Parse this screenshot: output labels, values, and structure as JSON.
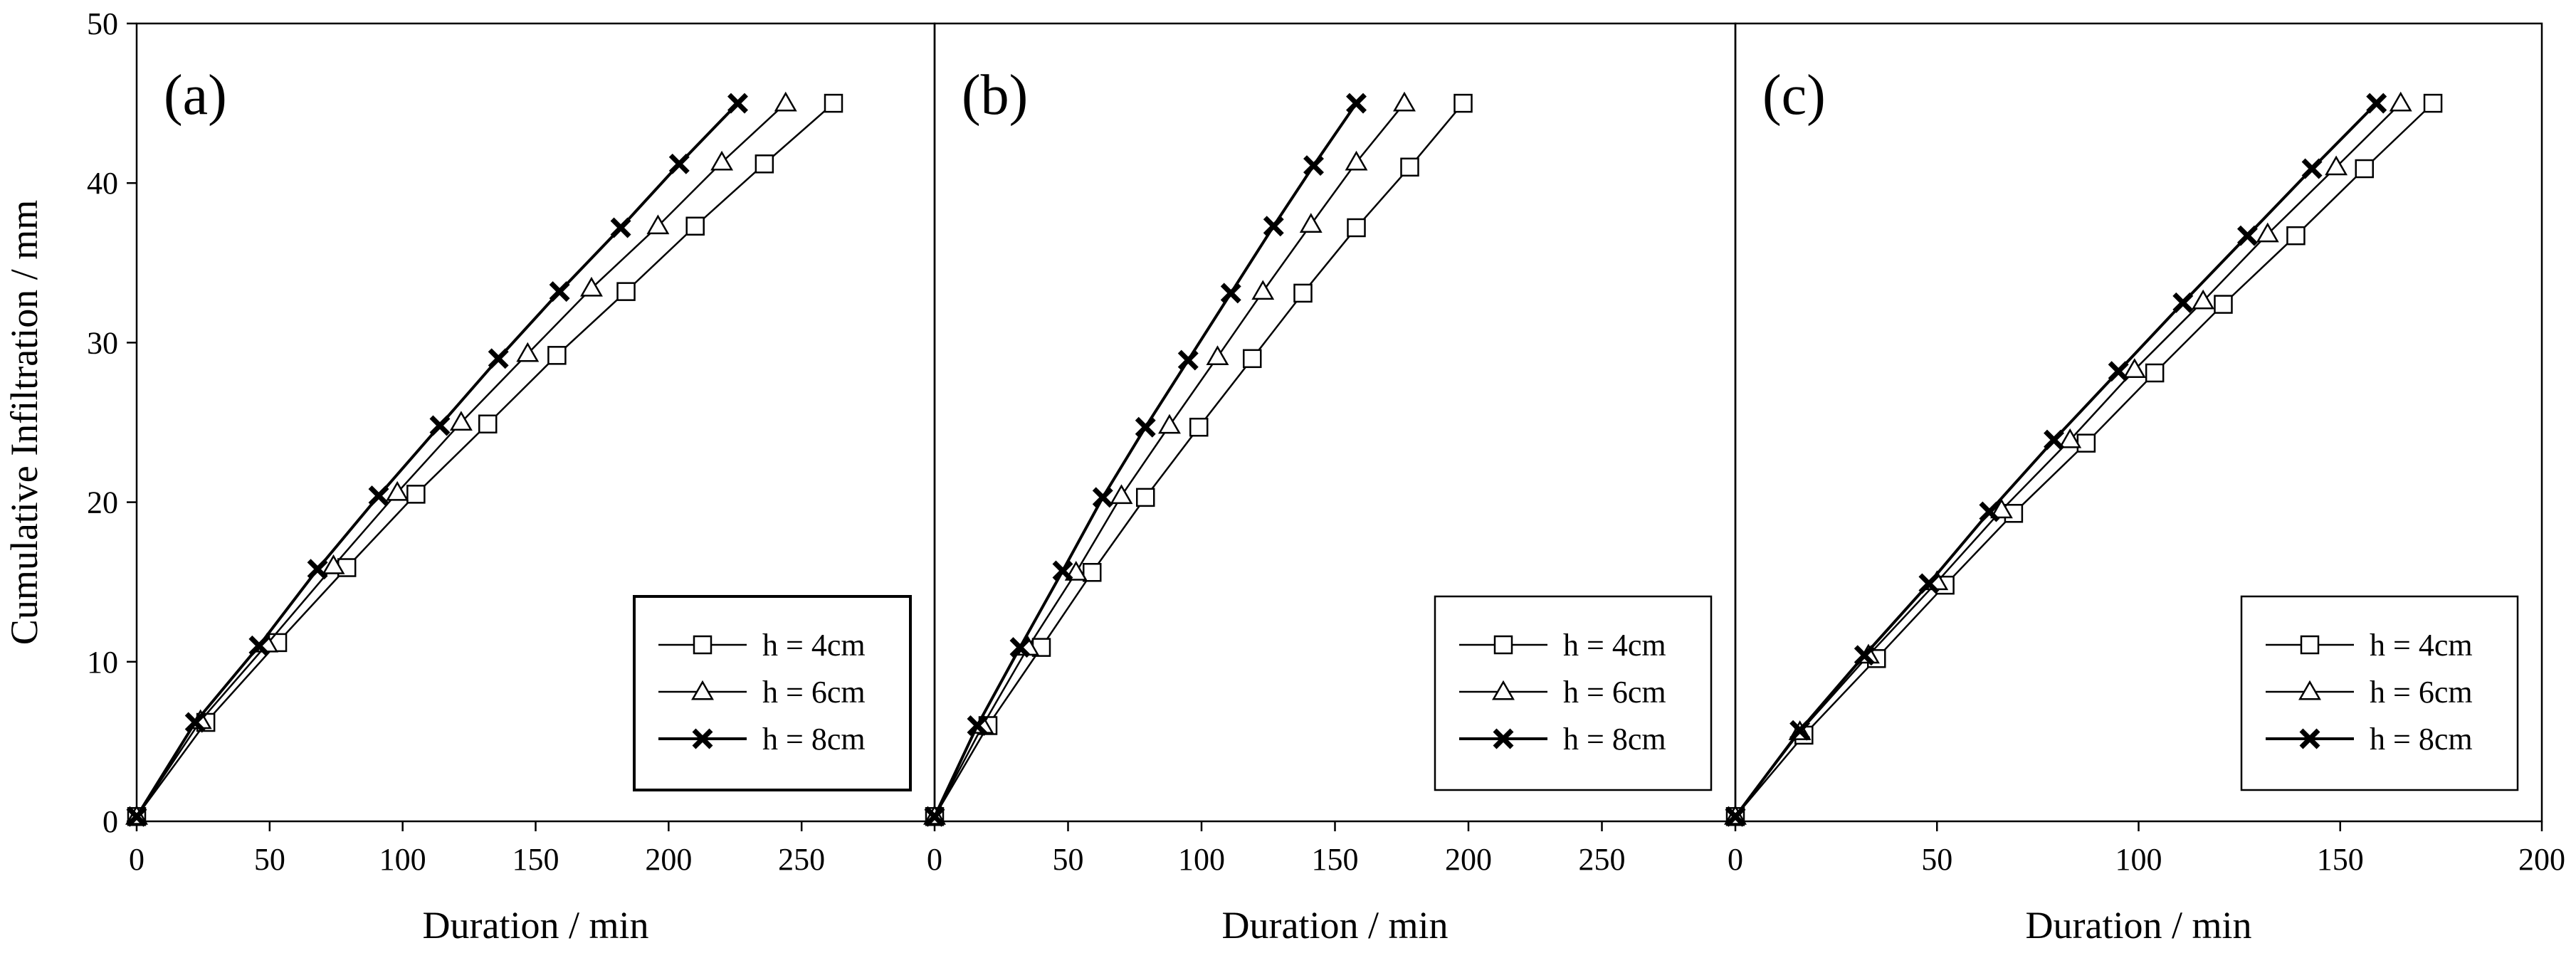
{
  "figure": {
    "ylabel": "Cumulative Infiltration / mm",
    "ylim": [
      0,
      50
    ],
    "yticks": [
      0,
      10,
      20,
      30,
      40,
      50
    ]
  },
  "chart_data": [
    {
      "type": "line",
      "panel_label": "(a)",
      "xlabel": "Duration / min",
      "xlim": [
        0,
        300
      ],
      "xticks": [
        0,
        50,
        100,
        150,
        200,
        250
      ],
      "ylim": [
        0,
        50
      ],
      "legend_position": "bottom-right",
      "series": [
        {
          "name": "h = 4cm",
          "marker": "square",
          "x": [
            0,
            26,
            53,
            79,
            105,
            132,
            158,
            184,
            210,
            236,
            262
          ],
          "y": [
            0.3,
            6.2,
            11.2,
            15.9,
            20.5,
            24.9,
            29.2,
            33.2,
            37.3,
            41.2,
            45.0
          ]
        },
        {
          "name": "h = 6cm",
          "marker": "triangle",
          "x": [
            0,
            24,
            49,
            74,
            98,
            122,
            147,
            171,
            196,
            220,
            244
          ],
          "y": [
            0.3,
            6.3,
            11.1,
            16.0,
            20.6,
            25.0,
            29.3,
            33.4,
            37.3,
            41.3,
            45.0
          ]
        },
        {
          "name": "h = 8cm",
          "marker": "x",
          "x": [
            0,
            22,
            46,
            68,
            91,
            114,
            136,
            159,
            182,
            204,
            226
          ],
          "y": [
            0.3,
            6.2,
            11.0,
            15.8,
            20.4,
            24.8,
            29.0,
            33.2,
            37.2,
            41.2,
            45.0
          ]
        }
      ]
    },
    {
      "type": "line",
      "panel_label": "(b)",
      "xlabel": "Duration / min",
      "xlim": [
        0,
        300
      ],
      "xticks": [
        0,
        50,
        100,
        150,
        200,
        250
      ],
      "ylim": [
        0,
        50
      ],
      "legend_position": "bottom-right",
      "series": [
        {
          "name": "h = 4cm",
          "marker": "square",
          "x": [
            0,
            20,
            40,
            59,
            79,
            99,
            119,
            138,
            158,
            178,
            198
          ],
          "y": [
            0.3,
            6.0,
            10.9,
            15.6,
            20.3,
            24.7,
            29.0,
            33.1,
            37.2,
            41.0,
            45.0
          ]
        },
        {
          "name": "h = 6cm",
          "marker": "triangle",
          "x": [
            0,
            18,
            35,
            53,
            70,
            88,
            106,
            123,
            141,
            158,
            176
          ],
          "y": [
            0.3,
            6.0,
            10.9,
            15.6,
            20.4,
            24.8,
            29.1,
            33.2,
            37.4,
            41.3,
            45.0
          ]
        },
        {
          "name": "h = 8cm",
          "marker": "x",
          "x": [
            0,
            16,
            32,
            48,
            63,
            79,
            95,
            111,
            127,
            142,
            158
          ],
          "y": [
            0.3,
            6.0,
            10.9,
            15.7,
            20.3,
            24.7,
            28.9,
            33.1,
            37.3,
            41.1,
            45.0
          ]
        }
      ]
    },
    {
      "type": "line",
      "panel_label": "(c)",
      "xlabel": "Duration / min",
      "xlim": [
        0,
        200
      ],
      "xticks": [
        0,
        50,
        100,
        150,
        200
      ],
      "ylim": [
        0,
        50
      ],
      "legend_position": "bottom-right",
      "series": [
        {
          "name": "h = 4cm",
          "marker": "square",
          "x": [
            0,
            17,
            35,
            52,
            69,
            87,
            104,
            121,
            139,
            156,
            173
          ],
          "y": [
            0.3,
            5.4,
            10.2,
            14.8,
            19.3,
            23.7,
            28.1,
            32.4,
            36.7,
            40.9,
            45.0
          ]
        },
        {
          "name": "h = 6cm",
          "marker": "triangle",
          "x": [
            0,
            16,
            33,
            50,
            66,
            83,
            99,
            116,
            132,
            149,
            165
          ],
          "y": [
            0.3,
            5.6,
            10.4,
            15.0,
            19.5,
            23.9,
            28.3,
            32.6,
            36.8,
            41.0,
            45.0
          ]
        },
        {
          "name": "h = 8cm",
          "marker": "x",
          "x": [
            0,
            16,
            32,
            48,
            63,
            79,
            95,
            111,
            127,
            143,
            159
          ],
          "y": [
            0.3,
            5.7,
            10.4,
            14.9,
            19.4,
            23.9,
            28.2,
            32.5,
            36.7,
            40.9,
            45.0
          ]
        }
      ]
    }
  ]
}
